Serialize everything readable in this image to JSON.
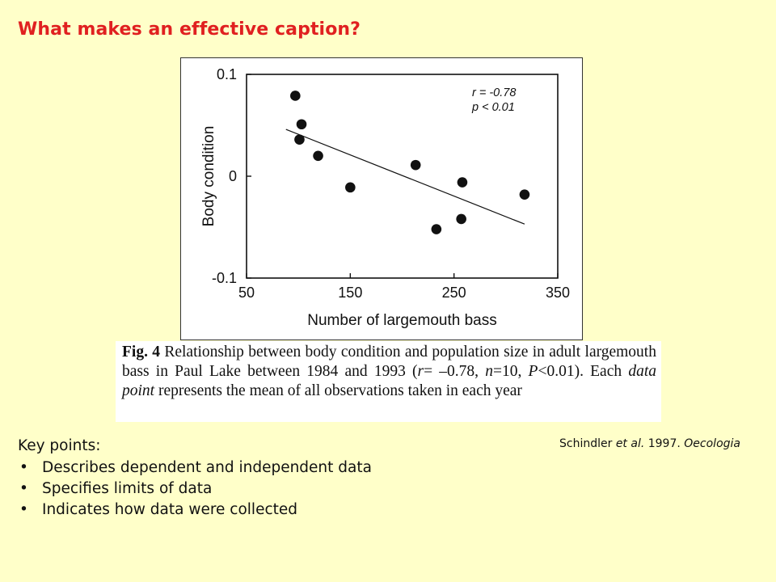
{
  "slide": {
    "title": "What makes an effective caption?",
    "citation": {
      "prefix": "Schindler ",
      "et_al": "et al.",
      "year": " 1997. ",
      "journal": "Oecologia"
    },
    "key_points": {
      "heading": "Key points:",
      "items": [
        "Describes dependent and independent data",
        "Specifies limits of data",
        "Indicates how data were collected"
      ]
    }
  },
  "caption": {
    "fig_label": "Fig. 4",
    "text_1": "  Relationship between body condition and population size in adult largemouth bass in Paul Lake between 1984 and 1993 (",
    "r_sym": "r",
    "text_2": "= –0.78, ",
    "n_sym": "n",
    "text_3": "=10, ",
    "p_sym": "P",
    "text_4": "<0.01). Each ",
    "italic_phrase": "data point",
    "text_5": " represents the mean of all observations taken in each year"
  },
  "chart_data": {
    "type": "scatter",
    "title": "",
    "xlabel": "Number of largemouth bass",
    "ylabel": "Body condition",
    "xlim": [
      50,
      350
    ],
    "ylim": [
      -0.1,
      0.1
    ],
    "xticks": [
      50,
      150,
      250,
      350
    ],
    "yticks": [
      -0.1,
      0,
      0.1
    ],
    "xtick_labels": [
      "50",
      "150",
      "250",
      "350"
    ],
    "ytick_labels": [
      "-0.1",
      "0",
      "0.1"
    ],
    "grid": false,
    "points": [
      {
        "x": 97,
        "y": 0.079
      },
      {
        "x": 103,
        "y": 0.051
      },
      {
        "x": 101,
        "y": 0.036
      },
      {
        "x": 119,
        "y": 0.02
      },
      {
        "x": 150,
        "y": -0.011
      },
      {
        "x": 213,
        "y": 0.011
      },
      {
        "x": 233,
        "y": -0.052
      },
      {
        "x": 258,
        "y": -0.006
      },
      {
        "x": 257,
        "y": -0.042
      },
      {
        "x": 318,
        "y": -0.018
      }
    ],
    "trendline": {
      "x": [
        88,
        318
      ],
      "y": [
        0.046,
        -0.047
      ]
    },
    "annotations": [
      "r = -0.78",
      "p < 0.01"
    ],
    "color": "#111111"
  }
}
